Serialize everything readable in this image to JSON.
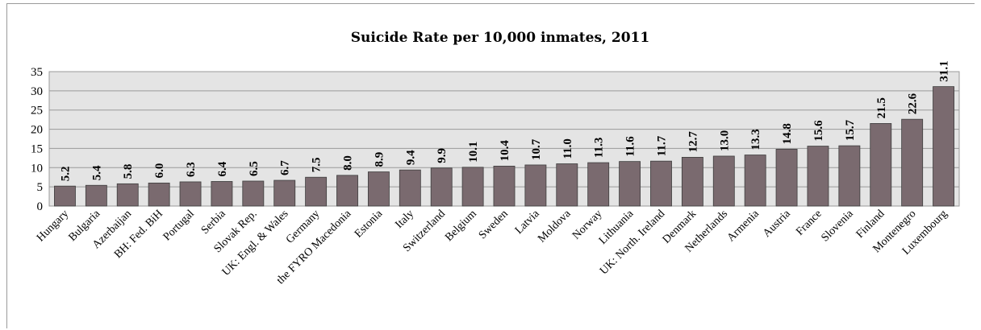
{
  "chart_data": {
    "type": "bar",
    "title": "Suicide Rate per 10,000 inmates, 2011",
    "xlabel": "",
    "ylabel": "",
    "ylim": [
      0,
      35
    ],
    "yticks": [
      "0",
      "5",
      "10",
      "15",
      "20",
      "25",
      "30",
      "35"
    ],
    "grid": true,
    "legend": "none",
    "bar_color": "#7a6a6f",
    "categories": [
      "Hungary",
      "Bulgaria",
      "Azerbaijan",
      "BH: Fed. BiH",
      "Portugal",
      "Serbia",
      "Slovak Rep.",
      "UK: Engl. & Wales",
      "Germany",
      "the FYRO Macedonia",
      "Estonia",
      "Italy",
      "Switzerland",
      "Belgium",
      "Sweden",
      "Latvia",
      "Moldova",
      "Norway",
      "Lithuania",
      "UK: North. Ireland",
      "Denmark",
      "Netherlands",
      "Armenia",
      "Austria",
      "France",
      "Slovenia",
      "Finland",
      "Montenegro",
      "Luxembourg"
    ],
    "values": [
      5.2,
      5.4,
      5.8,
      6.0,
      6.3,
      6.4,
      6.5,
      6.7,
      7.5,
      8.0,
      8.9,
      9.4,
      9.9,
      10.1,
      10.4,
      10.7,
      11.0,
      11.3,
      11.6,
      11.7,
      12.7,
      13.0,
      13.3,
      14.8,
      15.6,
      15.7,
      21.5,
      22.6,
      31.1
    ],
    "data_labels": [
      "5.2",
      "5.4",
      "5.8",
      "6.0",
      "6.3",
      "6.4",
      "6.5",
      "6.7",
      "7.5",
      "8.0",
      "8.9",
      "9.4",
      "9.9",
      "10.1",
      "10.4",
      "10.7",
      "11.0",
      "11.3",
      "11.6",
      "11.7",
      "12.7",
      "13.0",
      "13.3",
      "14.8",
      "15.6",
      "15.7",
      "21.5",
      "22.6",
      "31.1"
    ]
  }
}
